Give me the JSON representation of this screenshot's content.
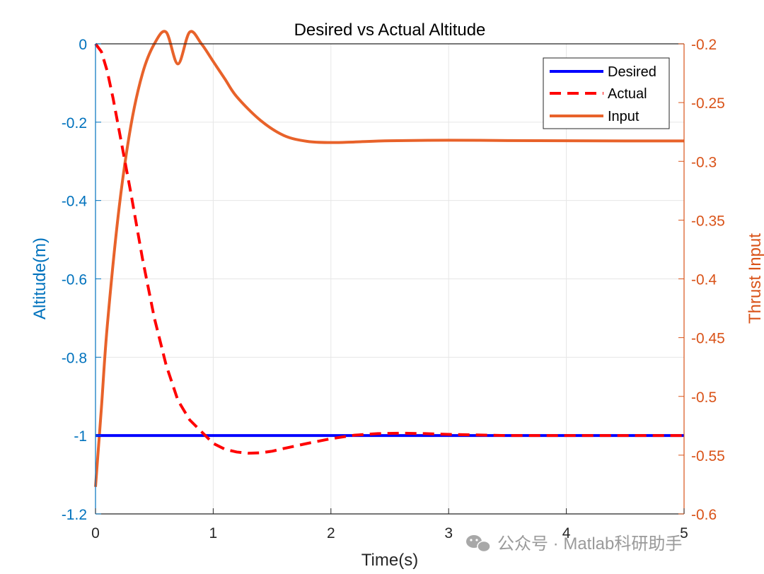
{
  "chart_data": {
    "type": "line",
    "title": "Desired vs Actual Altitude",
    "xlabel": "Time(s)",
    "ylabel_left": "Altitude(m)",
    "ylabel_right": "Thrust Input",
    "xlim": [
      0,
      5
    ],
    "ylim_left": [
      -1.2,
      0
    ],
    "ylim_right": [
      -0.6,
      -0.2
    ],
    "xticks": [
      "0",
      "1",
      "2",
      "3",
      "4",
      "5"
    ],
    "yticks_left": [
      "0",
      "-0.2",
      "-0.4",
      "-0.6",
      "-0.8",
      "-1",
      "-1.2"
    ],
    "yticks_right": [
      "-0.2",
      "-0.25",
      "-0.3",
      "-0.35",
      "-0.4",
      "-0.45",
      "-0.5",
      "-0.55",
      "-0.6"
    ],
    "grid": true,
    "legend_position": "top-right",
    "colors": {
      "left_axis": "#0072BD",
      "right_axis": "#D95319"
    },
    "series": [
      {
        "name": "Desired",
        "axis": "left",
        "style": "solid",
        "color": "#0000FF",
        "x": [
          0,
          5
        ],
        "y": [
          -1,
          -1
        ]
      },
      {
        "name": "Actual",
        "axis": "left",
        "style": "dashed",
        "color": "#FF0000",
        "x": [
          0,
          0.05,
          0.1,
          0.15,
          0.2,
          0.3,
          0.4,
          0.5,
          0.6,
          0.7,
          0.8,
          0.9,
          1.0,
          1.1,
          1.2,
          1.3,
          1.4,
          1.5,
          1.6,
          1.8,
          2.0,
          2.2,
          2.4,
          2.6,
          2.8,
          3.0,
          3.5,
          4.0,
          4.5,
          5.0
        ],
        "y": [
          0,
          -0.02,
          -0.07,
          -0.14,
          -0.22,
          -0.38,
          -0.55,
          -0.7,
          -0.82,
          -0.91,
          -0.96,
          -0.99,
          -1.02,
          -1.035,
          -1.042,
          -1.045,
          -1.044,
          -1.04,
          -1.033,
          -1.02,
          -1.008,
          -0.999,
          -0.995,
          -0.994,
          -0.995,
          -0.997,
          -1.0,
          -1.0,
          -1.0,
          -1.0
        ]
      },
      {
        "name": "Input",
        "axis": "right",
        "style": "solid",
        "color": "#E8622A",
        "x": [
          0,
          0.05,
          0.1,
          0.2,
          0.3,
          0.4,
          0.5,
          0.6,
          0.7,
          0.8,
          0.9,
          1.0,
          1.1,
          1.2,
          1.4,
          1.6,
          1.8,
          2.0,
          2.2,
          2.5,
          3.0,
          3.5,
          4.0,
          4.5,
          5.0
        ],
        "y": [
          -0.577,
          -0.51,
          -0.44,
          -0.34,
          -0.27,
          -0.225,
          -0.2,
          -0.19,
          -0.2171,
          -0.19,
          -0.2,
          -0.215,
          -0.23,
          -0.245,
          -0.265,
          -0.278,
          -0.283,
          -0.284,
          -0.2835,
          -0.2825,
          -0.282,
          -0.2823,
          -0.2825,
          -0.2826,
          -0.2826
        ]
      }
    ]
  },
  "watermark": {
    "text": "公众号 · Matlab科研助手",
    "icon": "wechat-icon"
  }
}
